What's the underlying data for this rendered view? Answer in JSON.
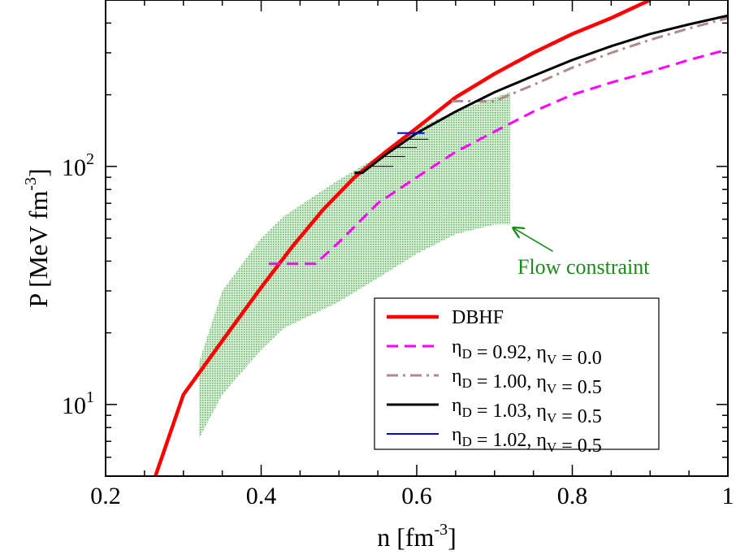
{
  "chart_data": {
    "type": "line",
    "xlabel": "n  [fm",
    "xlabel_sup": "-3",
    "xlabel_end": "]",
    "ylabel": "P  [MeV fm",
    "ylabel_sup": "-3",
    "ylabel_end": "]",
    "xlim": [
      0.2,
      1.0
    ],
    "ylim": [
      5,
      500
    ],
    "yscale": "log",
    "x_ticks": [
      0.2,
      0.4,
      0.6,
      0.8,
      1
    ],
    "x_tick_labels": [
      "0.2",
      "0.4",
      "0.6",
      "0.8",
      "1"
    ],
    "y_ticks": [
      {
        "value": 10,
        "base": "10",
        "exp": "1"
      },
      {
        "value": 100,
        "base": "10",
        "exp": "2"
      }
    ],
    "grid": false,
    "legend_position": "bottom-right",
    "annotation": {
      "text": "Flow constraint",
      "color": "#1a8a1a",
      "arrow_to": [
        0.72,
        56
      ],
      "label_at": [
        0.8,
        38
      ]
    },
    "band": {
      "name": "Flow constraint",
      "color": "#7cc47c",
      "x": [
        0.32,
        0.35,
        0.4,
        0.43,
        0.5,
        0.55,
        0.6,
        0.65,
        0.7,
        0.72
      ],
      "upper": [
        15,
        30,
        50,
        62,
        88,
        110,
        145,
        170,
        195,
        205
      ],
      "lower": [
        7.2,
        11,
        17,
        21,
        27,
        34,
        43,
        52,
        57,
        57
      ]
    },
    "series": [
      {
        "name": "DBHF",
        "color": "#ff0000",
        "style": "solid",
        "width": 4.5,
        "x": [
          0.264,
          0.3,
          0.35,
          0.4,
          0.44,
          0.48,
          0.52,
          0.56,
          0.6,
          0.65,
          0.7,
          0.75,
          0.8,
          0.85,
          0.9
        ],
        "y": [
          5,
          11,
          18.5,
          31,
          46,
          66,
          90,
          115,
          145,
          195,
          245,
          300,
          360,
          420,
          500
        ]
      },
      {
        "name": "ηD = 0.92, ηV = 0.0",
        "color": "#ff00ff",
        "style": "dashed",
        "width": 3,
        "x": [
          0.41,
          0.47,
          0.5,
          0.55,
          0.6,
          0.65,
          0.7,
          0.75,
          0.8,
          0.85,
          0.9,
          0.95,
          1.0
        ],
        "y": [
          39,
          39,
          48,
          70,
          90,
          115,
          140,
          170,
          200,
          225,
          250,
          280,
          310
        ]
      },
      {
        "name": "ηD = 1.00, ηV = 0.5",
        "color": "#b08a8a",
        "style": "dashdot",
        "width": 3,
        "x": [
          0.645,
          0.7,
          0.75,
          0.8,
          0.85,
          0.9,
          0.95,
          1.0
        ],
        "y": [
          188,
          188,
          220,
          260,
          300,
          340,
          380,
          420
        ]
      },
      {
        "name": "ηD = 1.03, ηV = 0.5",
        "color": "#000000",
        "style": "solid",
        "width": 3,
        "x": [
          0.52,
          0.53,
          0.56,
          0.6,
          0.65,
          0.7,
          0.75,
          0.8,
          0.85,
          0.9,
          0.95,
          1.0
        ],
        "y": [
          94,
          94,
          112,
          138,
          170,
          205,
          240,
          280,
          320,
          360,
          395,
          430
        ]
      },
      {
        "name": "ηD = 1.02, ηV = 0.5",
        "color": "#0000ff",
        "style": "solid",
        "width": 2,
        "x": [
          0.575,
          0.61
        ],
        "y": [
          138,
          138
        ]
      }
    ],
    "legend": [
      {
        "base": "DBHF",
        "parts": []
      },
      {
        "parts": [
          {
            "t": "η"
          },
          {
            "sub": "D"
          },
          {
            "t": " = 0.92, η"
          },
          {
            "sub": "V"
          },
          {
            "t": " = 0.0"
          }
        ]
      },
      {
        "parts": [
          {
            "t": "η"
          },
          {
            "sub": "D"
          },
          {
            "t": " = 1.00, η"
          },
          {
            "sub": "V"
          },
          {
            "t": " = 0.5"
          }
        ]
      },
      {
        "parts": [
          {
            "t": "η"
          },
          {
            "sub": "D"
          },
          {
            "t": " = 1.03, η"
          },
          {
            "sub": "V"
          },
          {
            "t": " = 0.5"
          }
        ]
      },
      {
        "parts": [
          {
            "t": "η"
          },
          {
            "sub": "D"
          },
          {
            "t": " = 1.02, η"
          },
          {
            "sub": "V"
          },
          {
            "t": " = 0.5"
          }
        ]
      }
    ]
  }
}
